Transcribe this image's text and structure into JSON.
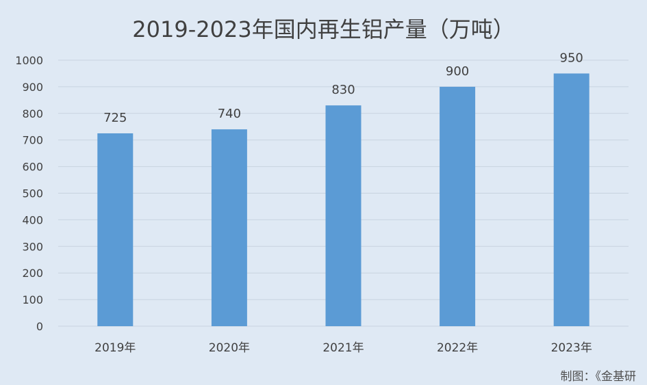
{
  "chart_data": {
    "type": "bar",
    "title": "2019-2023年国内再生铝产量（万吨）",
    "categories": [
      "2019年",
      "2020年",
      "2021年",
      "2022年",
      "2023年"
    ],
    "values": [
      725,
      740,
      830,
      900,
      950
    ],
    "data_labels": [
      "725",
      "740",
      "830",
      "900",
      "950"
    ],
    "y_ticks": [
      "0",
      "100",
      "200",
      "300",
      "400",
      "500",
      "600",
      "700",
      "800",
      "900",
      "1000"
    ],
    "ylim": [
      0,
      1000
    ],
    "grid": true,
    "legend": "none",
    "bar_color": "#5b9bd5",
    "grid_color": "#c8d3df"
  },
  "footer": {
    "credit": "制图：《金基研"
  }
}
